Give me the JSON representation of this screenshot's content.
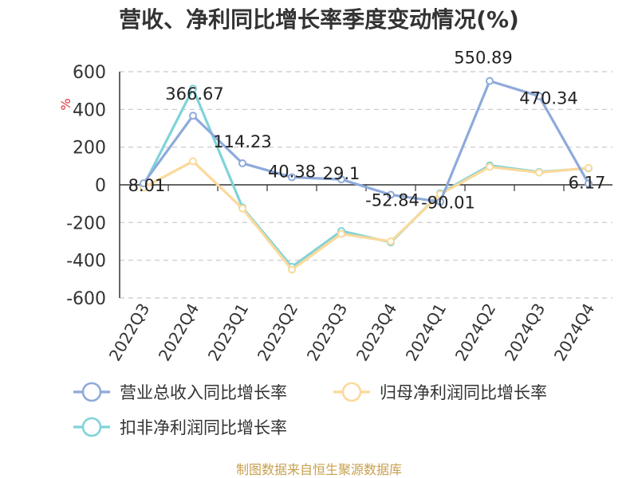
{
  "chart_data": {
    "type": "line",
    "title": "营收、净利同比增长率季度变动情况(%)",
    "ylabel": "%",
    "ylim": [
      -600,
      600
    ],
    "yticks": [
      600,
      400,
      200,
      0,
      -200,
      -400,
      -600
    ],
    "categories": [
      "2022Q3",
      "2022Q4",
      "2023Q1",
      "2023Q2",
      "2023Q3",
      "2023Q4",
      "2024Q1",
      "2024Q2",
      "2024Q3",
      "2024Q4"
    ],
    "series": [
      {
        "name": "营业总收入同比增长率",
        "color": "#8eaadb",
        "values": [
          8.01,
          366.67,
          114.23,
          40.38,
          29.1,
          -52.84,
          -90.01,
          550.89,
          470.34,
          6.17
        ],
        "labels": [
          "8.01",
          "366.67",
          "114.23",
          "40.38",
          "29.1",
          "-52.84",
          "-90.01",
          "550.89",
          "470.34",
          "6.17"
        ]
      },
      {
        "name": "归母净利润同比增长率",
        "color": "#fbd99a",
        "values": [
          -15,
          125,
          -125,
          -450,
          -260,
          -300,
          -50,
          95,
          65,
          90
        ]
      },
      {
        "name": "扣非净利润同比增长率",
        "color": "#80d3d8",
        "values": [
          -5,
          510,
          -120,
          -435,
          -245,
          -305,
          -45,
          103,
          68,
          88
        ]
      }
    ],
    "grid": true,
    "legend_position": "bottom"
  },
  "source": "制图数据来自恒生聚源数据库"
}
